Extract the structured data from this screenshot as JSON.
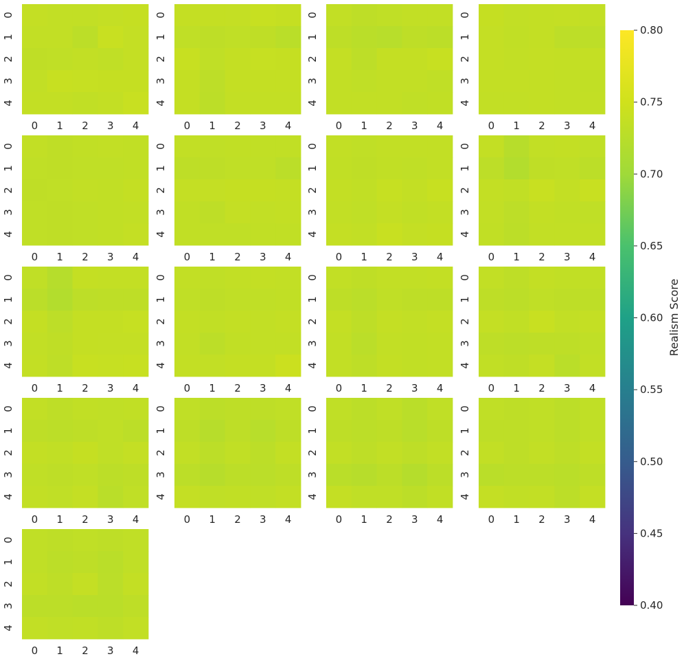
{
  "chart_data": {
    "type": "heatmap",
    "panel_count": 17,
    "grid_columns": 4,
    "x_tick_labels": [
      "0",
      "1",
      "2",
      "3",
      "4"
    ],
    "y_tick_labels": [
      "0",
      "1",
      "2",
      "3",
      "4"
    ],
    "colormap": "viridis",
    "colorbar": {
      "label": "Realism Score",
      "vmin": 0.4,
      "vmax": 0.8,
      "ticks": [
        "0.80",
        "0.75",
        "0.70",
        "0.65",
        "0.60",
        "0.55",
        "0.50",
        "0.45",
        "0.40"
      ],
      "tick_values": [
        0.8,
        0.75,
        0.7,
        0.65,
        0.6,
        0.55,
        0.5,
        0.45,
        0.4
      ],
      "placement": "right"
    },
    "panels": [
      [
        [
          0.737,
          0.735,
          0.735,
          0.737,
          0.739
        ],
        [
          0.735,
          0.735,
          0.729,
          0.742,
          0.737
        ],
        [
          0.732,
          0.733,
          0.735,
          0.733,
          0.737
        ],
        [
          0.735,
          0.741,
          0.74,
          0.739,
          0.739
        ],
        [
          0.736,
          0.736,
          0.734,
          0.736,
          0.742
        ]
      ],
      [
        [
          0.738,
          0.738,
          0.737,
          0.741,
          0.739
        ],
        [
          0.733,
          0.731,
          0.733,
          0.732,
          0.727
        ],
        [
          0.741,
          0.733,
          0.738,
          0.74,
          0.739
        ],
        [
          0.738,
          0.73,
          0.738,
          0.738,
          0.738
        ],
        [
          0.738,
          0.729,
          0.736,
          0.736,
          0.736
        ]
      ],
      [
        [
          0.735,
          0.731,
          0.733,
          0.735,
          0.735
        ],
        [
          0.731,
          0.727,
          0.725,
          0.731,
          0.729
        ],
        [
          0.737,
          0.73,
          0.738,
          0.738,
          0.741
        ],
        [
          0.735,
          0.733,
          0.735,
          0.735,
          0.733
        ],
        [
          0.735,
          0.735,
          0.735,
          0.733,
          0.734
        ]
      ],
      [
        [
          0.739,
          0.735,
          0.736,
          0.737,
          0.735
        ],
        [
          0.737,
          0.734,
          0.736,
          0.73,
          0.73
        ],
        [
          0.737,
          0.735,
          0.737,
          0.736,
          0.737
        ],
        [
          0.736,
          0.736,
          0.736,
          0.735,
          0.734
        ],
        [
          0.735,
          0.735,
          0.736,
          0.735,
          0.735
        ]
      ],
      [
        [
          0.735,
          0.732,
          0.734,
          0.735,
          0.734
        ],
        [
          0.733,
          0.732,
          0.733,
          0.733,
          0.734
        ],
        [
          0.732,
          0.733,
          0.735,
          0.734,
          0.738
        ],
        [
          0.733,
          0.732,
          0.733,
          0.734,
          0.735
        ],
        [
          0.733,
          0.732,
          0.733,
          0.734,
          0.737
        ]
      ],
      [
        [
          0.735,
          0.733,
          0.734,
          0.734,
          0.734
        ],
        [
          0.731,
          0.731,
          0.733,
          0.733,
          0.728
        ],
        [
          0.737,
          0.737,
          0.739,
          0.739,
          0.738
        ],
        [
          0.734,
          0.731,
          0.737,
          0.735,
          0.736
        ],
        [
          0.734,
          0.733,
          0.733,
          0.734,
          0.734
        ]
      ],
      [
        [
          0.735,
          0.733,
          0.735,
          0.735,
          0.735
        ],
        [
          0.734,
          0.732,
          0.734,
          0.733,
          0.735
        ],
        [
          0.736,
          0.734,
          0.74,
          0.736,
          0.741
        ],
        [
          0.735,
          0.733,
          0.737,
          0.734,
          0.736
        ],
        [
          0.737,
          0.735,
          0.742,
          0.737,
          0.739
        ]
      ],
      [
        [
          0.736,
          0.724,
          0.735,
          0.736,
          0.733
        ],
        [
          0.73,
          0.72,
          0.732,
          0.733,
          0.729
        ],
        [
          0.736,
          0.734,
          0.742,
          0.736,
          0.742
        ],
        [
          0.735,
          0.73,
          0.736,
          0.734,
          0.733
        ],
        [
          0.734,
          0.729,
          0.735,
          0.735,
          0.735
        ]
      ],
      [
        [
          0.733,
          0.723,
          0.738,
          0.736,
          0.736
        ],
        [
          0.728,
          0.72,
          0.73,
          0.731,
          0.731
        ],
        [
          0.738,
          0.73,
          0.738,
          0.738,
          0.74
        ],
        [
          0.735,
          0.732,
          0.738,
          0.737,
          0.737
        ],
        [
          0.736,
          0.731,
          0.741,
          0.74,
          0.741
        ]
      ],
      [
        [
          0.735,
          0.733,
          0.735,
          0.736,
          0.735
        ],
        [
          0.733,
          0.731,
          0.733,
          0.733,
          0.734
        ],
        [
          0.736,
          0.734,
          0.736,
          0.735,
          0.737
        ],
        [
          0.735,
          0.729,
          0.734,
          0.735,
          0.735
        ],
        [
          0.736,
          0.735,
          0.738,
          0.738,
          0.745
        ]
      ],
      [
        [
          0.735,
          0.732,
          0.735,
          0.735,
          0.736
        ],
        [
          0.731,
          0.728,
          0.733,
          0.731,
          0.731
        ],
        [
          0.737,
          0.731,
          0.737,
          0.735,
          0.737
        ],
        [
          0.735,
          0.728,
          0.735,
          0.734,
          0.735
        ],
        [
          0.735,
          0.731,
          0.736,
          0.734,
          0.735
        ]
      ],
      [
        [
          0.735,
          0.731,
          0.736,
          0.734,
          0.734
        ],
        [
          0.731,
          0.729,
          0.733,
          0.731,
          0.731
        ],
        [
          0.737,
          0.734,
          0.742,
          0.735,
          0.737
        ],
        [
          0.731,
          0.729,
          0.731,
          0.731,
          0.733
        ],
        [
          0.734,
          0.732,
          0.737,
          0.727,
          0.735
        ]
      ],
      [
        [
          0.735,
          0.731,
          0.734,
          0.733,
          0.734
        ],
        [
          0.731,
          0.729,
          0.731,
          0.733,
          0.729
        ],
        [
          0.736,
          0.734,
          0.739,
          0.733,
          0.737
        ],
        [
          0.733,
          0.731,
          0.733,
          0.729,
          0.731
        ],
        [
          0.735,
          0.733,
          0.737,
          0.727,
          0.733
        ]
      ],
      [
        [
          0.733,
          0.729,
          0.731,
          0.731,
          0.733
        ],
        [
          0.731,
          0.724,
          0.731,
          0.725,
          0.731
        ],
        [
          0.735,
          0.729,
          0.734,
          0.729,
          0.736
        ],
        [
          0.729,
          0.724,
          0.729,
          0.728,
          0.731
        ],
        [
          0.737,
          0.733,
          0.734,
          0.733,
          0.736
        ]
      ],
      [
        [
          0.733,
          0.729,
          0.733,
          0.727,
          0.733
        ],
        [
          0.731,
          0.729,
          0.731,
          0.726,
          0.731
        ],
        [
          0.735,
          0.731,
          0.735,
          0.731,
          0.735
        ],
        [
          0.727,
          0.724,
          0.729,
          0.722,
          0.729
        ],
        [
          0.737,
          0.733,
          0.733,
          0.729,
          0.734
        ]
      ],
      [
        [
          0.733,
          0.731,
          0.733,
          0.729,
          0.733
        ],
        [
          0.731,
          0.731,
          0.733,
          0.729,
          0.733
        ],
        [
          0.735,
          0.731,
          0.735,
          0.731,
          0.736
        ],
        [
          0.727,
          0.729,
          0.729,
          0.727,
          0.731
        ],
        [
          0.737,
          0.734,
          0.735,
          0.729,
          0.737
        ]
      ],
      [
        [
          0.733,
          0.731,
          0.733,
          0.731,
          0.733
        ],
        [
          0.733,
          0.729,
          0.731,
          0.727,
          0.733
        ],
        [
          0.735,
          0.731,
          0.737,
          0.728,
          0.736
        ],
        [
          0.729,
          0.729,
          0.727,
          0.727,
          0.731
        ],
        [
          0.735,
          0.733,
          0.734,
          0.731,
          0.735
        ]
      ]
    ]
  }
}
